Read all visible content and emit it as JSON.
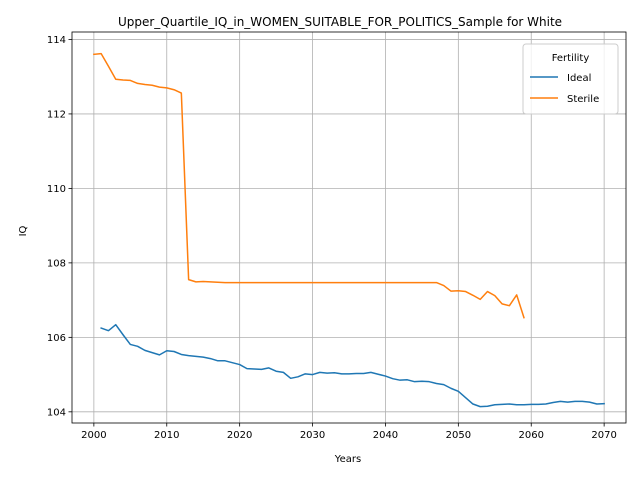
{
  "chart_data": {
    "type": "line",
    "title": "Upper_Quartile_IQ_in_WOMEN_SUITABLE_FOR_POLITICS_Sample for White",
    "xlabel": "Years",
    "ylabel": "IQ",
    "xlim": [
      1997,
      2073
    ],
    "ylim": [
      103.7,
      114.2
    ],
    "xticks": [
      2000,
      2010,
      2020,
      2030,
      2040,
      2050,
      2060,
      2070
    ],
    "yticks": [
      104,
      106,
      108,
      110,
      112,
      114
    ],
    "grid": true,
    "legend": {
      "title": "Fertility",
      "placement": "upper-right"
    },
    "series": [
      {
        "name": "Ideal",
        "color": "#1f77b4",
        "x": [
          2001,
          2002,
          2003,
          2004,
          2005,
          2006,
          2007,
          2008,
          2009,
          2010,
          2011,
          2012,
          2013,
          2014,
          2015,
          2016,
          2017,
          2018,
          2019,
          2020,
          2021,
          2022,
          2023,
          2024,
          2025,
          2026,
          2027,
          2028,
          2029,
          2030,
          2031,
          2032,
          2033,
          2034,
          2035,
          2036,
          2037,
          2038,
          2039,
          2040,
          2041,
          2042,
          2043,
          2044,
          2045,
          2046,
          2047,
          2048,
          2049,
          2050,
          2051,
          2052,
          2053,
          2054,
          2055,
          2056,
          2057,
          2058,
          2059,
          2060,
          2061,
          2062,
          2063,
          2064,
          2065,
          2066,
          2067,
          2068,
          2069,
          2070
        ],
        "values": [
          106.25,
          106.18,
          106.34,
          106.07,
          105.81,
          105.76,
          105.65,
          105.59,
          105.53,
          105.64,
          105.62,
          105.54,
          105.51,
          105.49,
          105.47,
          105.43,
          105.37,
          105.37,
          105.32,
          105.27,
          105.16,
          105.15,
          105.14,
          105.18,
          105.09,
          105.06,
          104.9,
          104.94,
          105.02,
          105.0,
          105.06,
          105.04,
          105.05,
          105.02,
          105.02,
          105.03,
          105.03,
          105.06,
          105.01,
          104.96,
          104.89,
          104.85,
          104.86,
          104.81,
          104.82,
          104.81,
          104.76,
          104.73,
          104.63,
          104.55,
          104.38,
          104.21,
          104.14,
          104.15,
          104.19,
          104.2,
          104.21,
          104.19,
          104.19,
          104.2,
          104.2,
          104.21,
          104.25,
          104.28,
          104.26,
          104.28,
          104.28,
          104.26,
          104.21,
          104.22
        ]
      },
      {
        "name": "Sterile",
        "color": "#ff7f0e",
        "x": [
          2000,
          2001,
          2002,
          2003,
          2004,
          2005,
          2006,
          2007,
          2008,
          2009,
          2010,
          2011,
          2012,
          2013,
          2014,
          2015,
          2016,
          2017,
          2018,
          2019,
          2020,
          2021,
          2022,
          2023,
          2024,
          2025,
          2026,
          2027,
          2028,
          2029,
          2030,
          2031,
          2032,
          2033,
          2034,
          2035,
          2036,
          2037,
          2038,
          2039,
          2040,
          2041,
          2042,
          2043,
          2044,
          2045,
          2046,
          2047,
          2048,
          2049,
          2050,
          2051,
          2052,
          2053,
          2054,
          2055,
          2056,
          2057,
          2058,
          2059
        ],
        "values": [
          113.6,
          113.62,
          113.28,
          112.93,
          112.91,
          112.9,
          112.82,
          112.79,
          112.77,
          112.72,
          112.7,
          112.65,
          112.56,
          107.55,
          107.49,
          107.5,
          107.49,
          107.48,
          107.47,
          107.47,
          107.47,
          107.47,
          107.47,
          107.47,
          107.47,
          107.47,
          107.47,
          107.47,
          107.47,
          107.47,
          107.47,
          107.47,
          107.47,
          107.47,
          107.47,
          107.47,
          107.47,
          107.47,
          107.47,
          107.47,
          107.47,
          107.47,
          107.47,
          107.47,
          107.47,
          107.47,
          107.47,
          107.47,
          107.39,
          107.24,
          107.25,
          107.23,
          107.13,
          107.02,
          107.23,
          107.12,
          106.9,
          106.85,
          107.14,
          106.53
        ]
      }
    ]
  }
}
